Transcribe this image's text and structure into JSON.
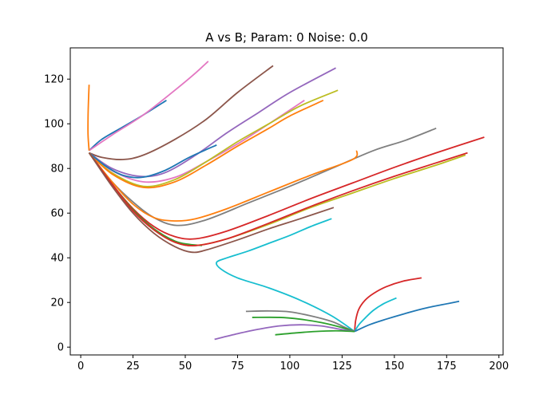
{
  "chart_data": {
    "type": "line",
    "title": "A vs B; Param: 0 Noise: 0.0",
    "xlabel": "",
    "ylabel": "",
    "xlim": [
      -5,
      202
    ],
    "ylim": [
      -3.5,
      134
    ],
    "xticks": [
      0,
      25,
      50,
      75,
      100,
      125,
      150,
      175,
      200
    ],
    "yticks": [
      0,
      20,
      40,
      60,
      80,
      100,
      120
    ],
    "grid": false,
    "legend": "none",
    "series": [
      {
        "color": "#1f77b4",
        "points": [
          [
            4,
            88
          ],
          [
            10,
            93
          ],
          [
            20,
            98.5
          ],
          [
            30,
            104
          ],
          [
            41,
            110.5
          ]
        ]
      },
      {
        "color": "#e377c2",
        "points": [
          [
            4,
            88
          ],
          [
            15,
            95
          ],
          [
            30,
            104
          ],
          [
            45,
            115
          ],
          [
            54,
            122
          ],
          [
            61,
            128
          ]
        ]
      },
      {
        "color": "#8c564b",
        "points": [
          [
            4,
            87
          ],
          [
            10,
            85
          ],
          [
            20,
            84
          ],
          [
            30,
            86
          ],
          [
            45,
            93
          ],
          [
            60,
            102
          ],
          [
            75,
            114
          ],
          [
            92,
            126
          ]
        ]
      },
      {
        "color": "#9467bd",
        "points": [
          [
            4,
            87
          ],
          [
            15,
            80
          ],
          [
            28,
            76.5
          ],
          [
            40,
            78
          ],
          [
            55,
            86
          ],
          [
            70,
            96
          ],
          [
            85,
            105
          ],
          [
            100,
            114
          ],
          [
            122,
            125
          ]
        ]
      },
      {
        "color": "#e377c2",
        "points": [
          [
            4,
            87
          ],
          [
            15,
            79
          ],
          [
            30,
            74
          ],
          [
            45,
            76
          ],
          [
            60,
            83
          ],
          [
            75,
            91
          ],
          [
            90,
            100
          ],
          [
            107,
            110.5
          ]
        ]
      },
      {
        "color": "#bcbd22",
        "points": [
          [
            4,
            87
          ],
          [
            15,
            78
          ],
          [
            30,
            72
          ],
          [
            45,
            75
          ],
          [
            60,
            83
          ],
          [
            75,
            92
          ],
          [
            90,
            100
          ],
          [
            105,
            108
          ],
          [
            123,
            115
          ]
        ]
      },
      {
        "color": "#ff7f0e",
        "points": [
          [
            4,
            87
          ],
          [
            15,
            77.5
          ],
          [
            30,
            71.5
          ],
          [
            45,
            74
          ],
          [
            60,
            81.5
          ],
          [
            75,
            90
          ],
          [
            90,
            98
          ],
          [
            100,
            103.5
          ],
          [
            116,
            110.5
          ]
        ]
      },
      {
        "color": "#1f77b4",
        "points": [
          [
            4,
            87
          ],
          [
            12,
            81
          ],
          [
            20,
            77
          ],
          [
            29,
            76
          ],
          [
            40,
            79
          ],
          [
            52,
            85
          ],
          [
            65,
            90.5
          ]
        ]
      },
      {
        "color": "#7f7f7f",
        "points": [
          [
            4,
            87
          ],
          [
            15,
            74
          ],
          [
            25,
            65
          ],
          [
            35,
            58
          ],
          [
            46,
            54.5
          ],
          [
            60,
            57
          ],
          [
            80,
            64.5
          ],
          [
            100,
            72
          ],
          [
            120,
            80
          ],
          [
            140,
            88
          ],
          [
            155,
            92.5
          ],
          [
            170,
            98
          ]
        ]
      },
      {
        "color": "#ff7f0e",
        "points": [
          [
            4,
            87
          ],
          [
            15,
            74
          ],
          [
            25,
            64
          ],
          [
            35,
            58
          ],
          [
            45,
            56.5
          ],
          [
            55,
            57.5
          ],
          [
            70,
            62
          ],
          [
            90,
            69.5
          ],
          [
            110,
            77
          ],
          [
            130,
            84
          ],
          [
            132,
            88
          ]
        ]
      },
      {
        "color": "#d62728",
        "points": [
          [
            4,
            87
          ],
          [
            15,
            73
          ],
          [
            25,
            62
          ],
          [
            35,
            54
          ],
          [
            45,
            49.5
          ],
          [
            55,
            48.5
          ],
          [
            70,
            52
          ],
          [
            90,
            59
          ],
          [
            110,
            66.5
          ],
          [
            130,
            73.5
          ],
          [
            150,
            80.5
          ],
          [
            170,
            87
          ],
          [
            193,
            94
          ]
        ]
      },
      {
        "color": "#2ca02c",
        "points": [
          [
            4,
            87
          ],
          [
            15,
            73
          ],
          [
            25,
            61.5
          ],
          [
            35,
            53
          ],
          [
            45,
            47.5
          ],
          [
            52,
            46
          ],
          [
            58,
            45.5
          ]
        ]
      },
      {
        "color": "#bcbd22",
        "points": [
          [
            4,
            87
          ],
          [
            15,
            73
          ],
          [
            25,
            61
          ],
          [
            35,
            52.5
          ],
          [
            45,
            47
          ],
          [
            55,
            45.5
          ],
          [
            70,
            48.5
          ],
          [
            90,
            55
          ],
          [
            110,
            62.5
          ],
          [
            130,
            69
          ],
          [
            150,
            75.5
          ],
          [
            170,
            81.5
          ],
          [
            184,
            86
          ]
        ]
      },
      {
        "color": "#d62728",
        "points": [
          [
            4,
            87
          ],
          [
            15,
            73
          ],
          [
            25,
            61
          ],
          [
            35,
            52.5
          ],
          [
            45,
            47
          ],
          [
            55,
            45.5
          ],
          [
            70,
            48.5
          ],
          [
            90,
            55.5
          ],
          [
            110,
            63
          ],
          [
            130,
            70
          ],
          [
            150,
            76.5
          ],
          [
            170,
            82.5
          ],
          [
            185,
            87
          ]
        ]
      },
      {
        "color": "#8c564b",
        "points": [
          [
            4,
            87
          ],
          [
            15,
            72
          ],
          [
            25,
            60
          ],
          [
            35,
            51
          ],
          [
            45,
            45
          ],
          [
            53,
            42.5
          ],
          [
            60,
            43.5
          ],
          [
            75,
            48
          ],
          [
            90,
            53
          ],
          [
            105,
            57.5
          ],
          [
            121,
            62.5
          ]
        ]
      },
      {
        "color": "#17becf",
        "points": [
          [
            120,
            57.5
          ],
          [
            110,
            54
          ],
          [
            100,
            50
          ],
          [
            90,
            46.5
          ],
          [
            80,
            43
          ],
          [
            70,
            40
          ],
          [
            65,
            38
          ],
          [
            67,
            35
          ],
          [
            75,
            31
          ],
          [
            90,
            26.5
          ],
          [
            105,
            21
          ],
          [
            120,
            14
          ],
          [
            131,
            7
          ]
        ]
      },
      {
        "color": "#d62728",
        "points": [
          [
            131,
            7
          ],
          [
            131.5,
            12
          ],
          [
            133,
            17
          ],
          [
            136,
            21
          ],
          [
            140,
            24
          ],
          [
            146,
            27
          ],
          [
            154,
            29.5
          ],
          [
            163,
            31
          ]
        ]
      },
      {
        "color": "#17becf",
        "points": [
          [
            131,
            7
          ],
          [
            133,
            10
          ],
          [
            136,
            13
          ],
          [
            140,
            16.5
          ],
          [
            145,
            19.5
          ],
          [
            151,
            22
          ]
        ]
      },
      {
        "color": "#1f77b4",
        "points": [
          [
            131,
            7
          ],
          [
            138,
            10
          ],
          [
            146,
            12.5
          ],
          [
            155,
            15
          ],
          [
            165,
            17.5
          ],
          [
            181,
            20.5
          ]
        ]
      },
      {
        "color": "#7f7f7f",
        "points": [
          [
            131,
            7
          ],
          [
            126,
            9
          ],
          [
            120,
            11.5
          ],
          [
            110,
            14
          ],
          [
            100,
            15.8
          ],
          [
            90,
            16.2
          ],
          [
            79,
            16
          ]
        ]
      },
      {
        "color": "#2ca02c",
        "points": [
          [
            131,
            7
          ],
          [
            124,
            9
          ],
          [
            115,
            11
          ],
          [
            105,
            12.5
          ],
          [
            95,
            13.3
          ],
          [
            82,
            13.3
          ]
        ]
      },
      {
        "color": "#9467bd",
        "points": [
          [
            131,
            7
          ],
          [
            124,
            8
          ],
          [
            115,
            9.5
          ],
          [
            105,
            10
          ],
          [
            95,
            9.5
          ],
          [
            85,
            8
          ],
          [
            75,
            6
          ],
          [
            64,
            3.5
          ]
        ]
      },
      {
        "color": "#2ca02c",
        "points": [
          [
            131,
            7
          ],
          [
            122,
            7.3
          ],
          [
            112,
            7
          ],
          [
            102,
            6.3
          ],
          [
            93,
            5.5
          ]
        ]
      },
      {
        "color": "#ff7f0e",
        "points": [
          [
            4,
            88
          ],
          [
            3.5,
            95
          ],
          [
            3.5,
            103
          ],
          [
            3.7,
            110
          ],
          [
            4,
            117.5
          ]
        ]
      }
    ]
  }
}
